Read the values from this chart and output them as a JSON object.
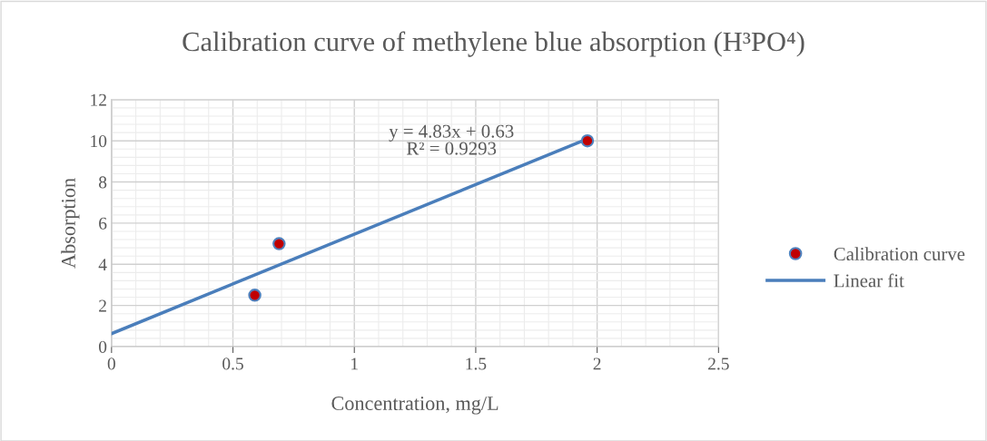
{
  "chart_data": {
    "type": "scatter",
    "title": "Calibration curve of methylene blue absorption (H³PO⁴)",
    "xlabel": "Concentration, mg/L",
    "ylabel": "Absorption",
    "series": [
      {
        "name": "Calibration curve",
        "color": "#c00000",
        "marker": "circle",
        "x": [
          0.59,
          0.69,
          1.96
        ],
        "values": [
          2.5,
          5,
          10
        ]
      },
      {
        "name": "Linear fit",
        "type": "line",
        "color": "#4a7ebb",
        "marker": "none",
        "line_style": "solid",
        "x": [
          0,
          1.96
        ],
        "values": [
          0.63,
          10.1
        ]
      }
    ],
    "annotations": [
      "y = 4.83x + 0.63",
      "R² = 0.9293"
    ],
    "xlim": [
      0,
      2.5
    ],
    "xticks": [
      {
        "value": 0,
        "label": "0"
      },
      0.5,
      1,
      1.5,
      2,
      2.5
    ],
    "ylim": [
      0,
      12
    ],
    "yticks": [
      0,
      2,
      4,
      6,
      8,
      10,
      12
    ],
    "grid": true,
    "legend": "right"
  }
}
